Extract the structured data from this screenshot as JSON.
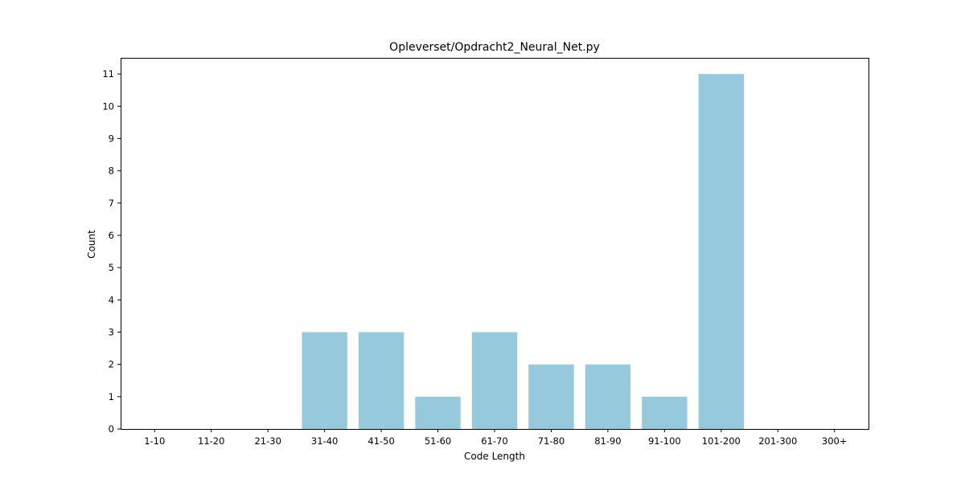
{
  "chart_data": {
    "type": "bar",
    "title": "Opleverset/Opdracht2_Neural_Net.py",
    "xlabel": "Code Length",
    "ylabel": "Count",
    "categories": [
      "1-10",
      "11-20",
      "21-30",
      "31-40",
      "41-50",
      "51-60",
      "61-70",
      "71-80",
      "81-90",
      "91-100",
      "101-200",
      "201-300",
      "300+"
    ],
    "values": [
      0,
      0,
      0,
      3,
      3,
      1,
      3,
      2,
      2,
      1,
      11,
      0,
      0
    ],
    "ylim": [
      0,
      11.5
    ],
    "yticks": [
      0,
      1,
      2,
      3,
      4,
      5,
      6,
      7,
      8,
      9,
      10,
      11
    ],
    "grid": false,
    "bar_color": "#96c9dc"
  }
}
